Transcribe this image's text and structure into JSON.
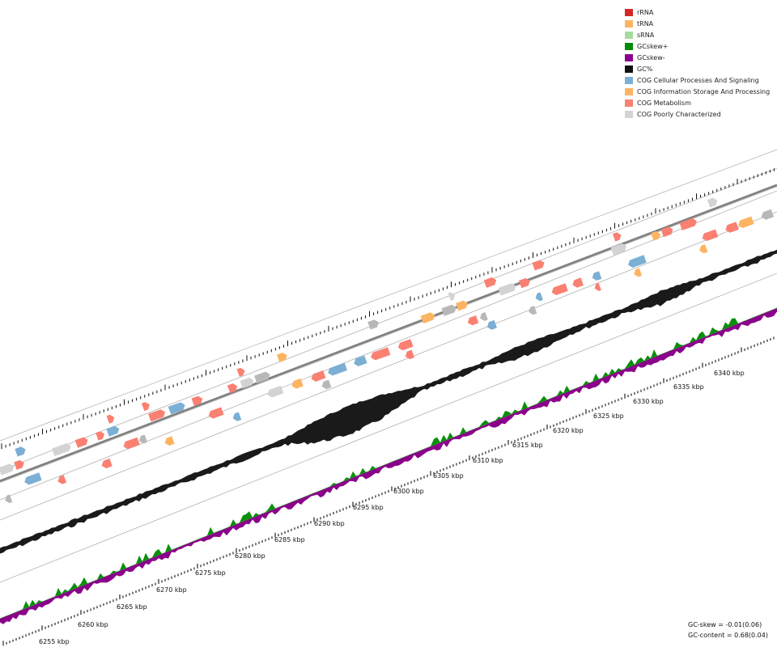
{
  "legend": {
    "items": [
      {
        "label": "rRNA",
        "color": "#d62728"
      },
      {
        "label": "tRNA",
        "color": "#fdb462"
      },
      {
        "label": "sRNA",
        "color": "#a6dba0"
      },
      {
        "label": "GCskew+",
        "color": "#008c00"
      },
      {
        "label": "GCskew-",
        "color": "#8b008b"
      },
      {
        "label": "GC%",
        "color": "#111111"
      },
      {
        "label": "COG Cellular Processes And Signaling",
        "color": "#7bafd4"
      },
      {
        "label": "COG Information Storage And Processing",
        "color": "#fdb462"
      },
      {
        "label": "COG Metabolism",
        "color": "#fa8072"
      },
      {
        "label": "COG Poorly Characterized",
        "color": "#d3d3d3"
      }
    ]
  },
  "colors": {
    "cog_cellular": "#7bafd4",
    "cog_information": "#fdb462",
    "cog_metabolism": "#fa8072",
    "cog_poorly": "#d3d3d3",
    "cog_unknown_dark": "#b8b8b8",
    "gc_content": "#1a1a1a",
    "skew_pos": "#0a8f0a",
    "skew_neg": "#8b008b",
    "backbone": "#808080",
    "track_line": "#b0b0b0",
    "tick": "#111111"
  },
  "axis": {
    "labels": [
      "6255 kbp",
      "6260 kbp",
      "6265 kbp",
      "6270 kbp",
      "6275 kbp",
      "6280 kbp",
      "6285 kbp",
      "6290 kbp",
      "6295 kbp",
      "6300 kbp",
      "6305 kbp",
      "6310 kbp",
      "6315 kbp",
      "6320 kbp",
      "6325 kbp",
      "6330 kbp",
      "6335 kbp",
      "6340 kbp"
    ]
  },
  "stats": {
    "gc_skew": "GC-skew = -0.01(0.06)",
    "gc_content": "GC-content = 0.68(0.04)"
  }
}
